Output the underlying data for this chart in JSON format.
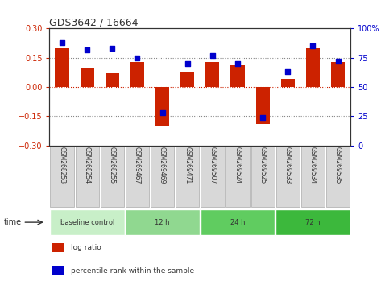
{
  "title": "GDS3642 / 16664",
  "samples": [
    "GSM268253",
    "GSM268254",
    "GSM268255",
    "GSM269467",
    "GSM269469",
    "GSM269471",
    "GSM269507",
    "GSM269524",
    "GSM269525",
    "GSM269533",
    "GSM269534",
    "GSM269535"
  ],
  "log_ratio": [
    0.2,
    0.1,
    0.07,
    0.13,
    -0.2,
    0.08,
    0.13,
    0.11,
    -0.19,
    0.04,
    0.2,
    0.13
  ],
  "percentile": [
    88,
    82,
    83,
    75,
    28,
    70,
    77,
    70,
    24,
    63,
    85,
    72
  ],
  "groups": [
    {
      "label": "baseline control",
      "count": 3,
      "color": "#C8EFC8"
    },
    {
      "label": "12 h",
      "count": 3,
      "color": "#90D890"
    },
    {
      "label": "24 h",
      "count": 3,
      "color": "#60CC60"
    },
    {
      "label": "72 h",
      "count": 3,
      "color": "#3CB83C"
    }
  ],
  "bar_color": "#CC2200",
  "marker_color": "#0000CC",
  "ylim_left": [
    -0.3,
    0.3
  ],
  "ylim_right": [
    0,
    100
  ],
  "yticks_left": [
    -0.3,
    -0.15,
    0,
    0.15,
    0.3
  ],
  "yticks_right": [
    0,
    25,
    50,
    75,
    100
  ],
  "hlines": [
    -0.15,
    0.0,
    0.15
  ],
  "hline_colors": [
    "#888888",
    "#CC2200",
    "#888888"
  ],
  "hline_styles": [
    "dotted",
    "dotted",
    "dotted"
  ],
  "bg_color": "#FFFFFF",
  "tick_label_color_left": "#CC2200",
  "tick_label_color_right": "#0000CC",
  "label_box_color": "#D8D8D8",
  "label_box_edge": "#AAAAAA",
  "legend_items": [
    {
      "label": "log ratio",
      "color": "#CC2200"
    },
    {
      "label": "percentile rank within the sample",
      "color": "#0000CC"
    }
  ]
}
